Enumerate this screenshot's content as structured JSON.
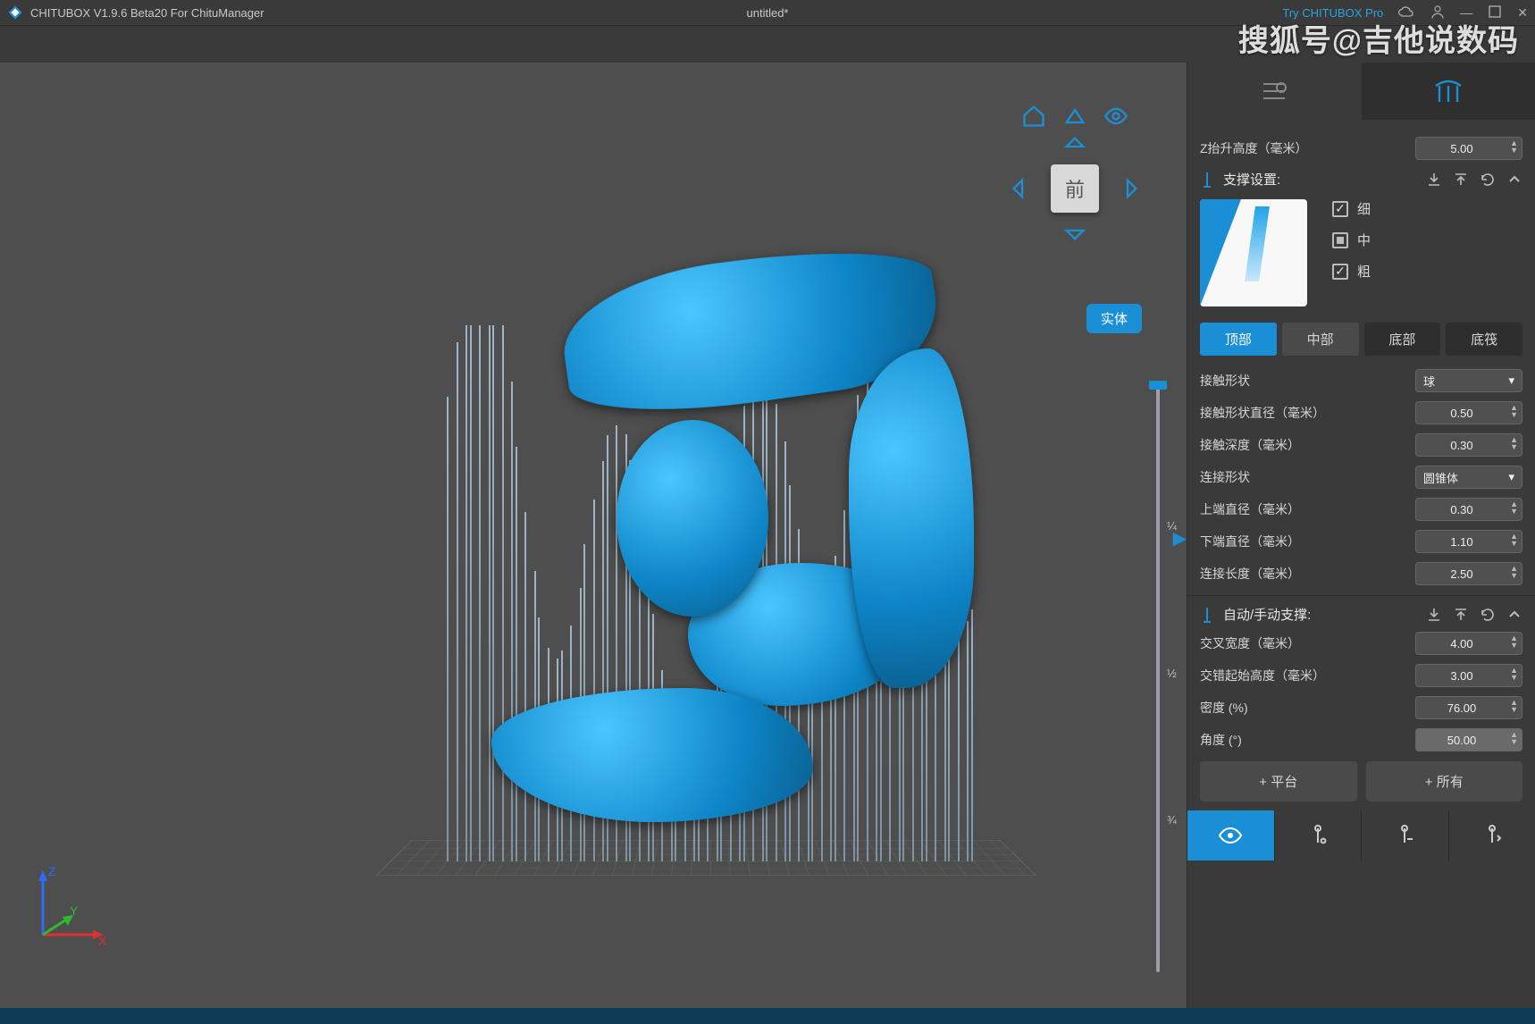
{
  "title": {
    "app": "CHITUBOX V1.9.6 Beta20 For ChituManager",
    "document": "untitled*",
    "try_pro": "Try CHITUBOX Pro"
  },
  "watermark": "搜狐号@吉他说数码",
  "viewport": {
    "front_label": "前",
    "solid_button": "实体",
    "slider_ticks": [
      "¼",
      "½",
      "¾"
    ],
    "axes": {
      "z": "Z",
      "y": "Y",
      "x": "X"
    }
  },
  "side": {
    "z_lift": {
      "label": "Z抬升高度（毫米）",
      "value": "5.00"
    },
    "support_settings_label": "支撑设置:",
    "thickness": {
      "thin": "细",
      "medium": "中",
      "thick": "粗"
    },
    "tabs4": {
      "top": "顶部",
      "middle": "中部",
      "bottom": "底部",
      "raft": "底筏"
    },
    "top_params": {
      "contact_shape": {
        "label": "接触形状",
        "value": "球"
      },
      "contact_diameter": {
        "label": "接触形状直径（毫米）",
        "value": "0.50"
      },
      "contact_depth": {
        "label": "接触深度（毫米）",
        "value": "0.30"
      },
      "connect_shape": {
        "label": "连接形状",
        "value": "圆锥体"
      },
      "upper_diameter": {
        "label": "上端直径（毫米）",
        "value": "0.30"
      },
      "lower_diameter": {
        "label": "下端直径（毫米）",
        "value": "1.10"
      },
      "connect_length": {
        "label": "连接长度（毫米）",
        "value": "2.50"
      }
    },
    "auto_manual_label": "自动/手动支撑:",
    "auto_params": {
      "cross_width": {
        "label": "交叉宽度（毫米）",
        "value": "4.00"
      },
      "stagger_start": {
        "label": "交错起始高度（毫米）",
        "value": "3.00"
      },
      "density": {
        "label": "密度 (%)",
        "value": "76.00"
      },
      "angle": {
        "label": "角度 (°)",
        "value": "50.00"
      }
    },
    "big_buttons": {
      "platform": "+ 平台",
      "all": "+ 所有"
    }
  },
  "colors": {
    "accent": "#1b8fd6",
    "panel": "#3a3a3a",
    "canvas": "#4e4e4e"
  }
}
